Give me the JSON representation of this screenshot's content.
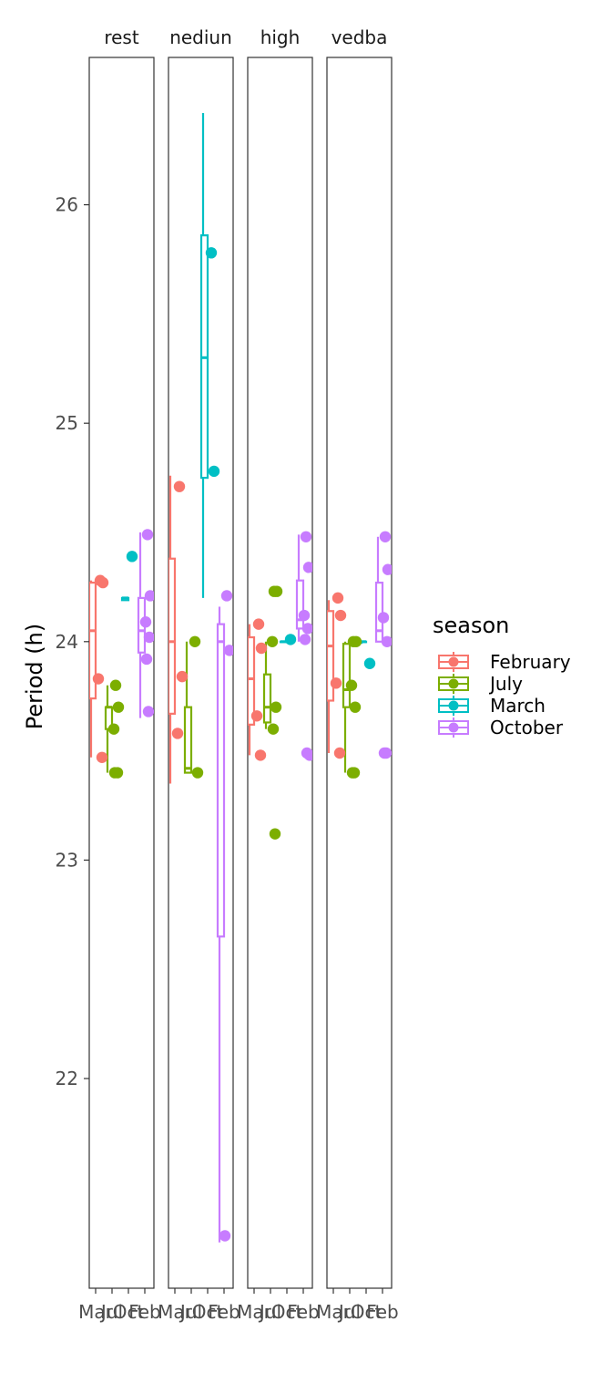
{
  "chart_data": {
    "type": "boxplot",
    "ylabel": "Period (h)",
    "ylim": [
      21.05,
      26.7
    ],
    "y_ticks": [
      22,
      23,
      24,
      25,
      26
    ],
    "x_categories": [
      "March",
      "July",
      "October",
      "February"
    ],
    "x_tick_labels": [
      "Mar",
      "Jul",
      "Oct",
      "Feb"
    ],
    "facets": [
      {
        "label": "rest",
        "boxes": [
          {
            "season": "February",
            "whisker_low": 23.47,
            "q1": 23.74,
            "median": 24.05,
            "q3": 24.27,
            "whisker_high": 24.28
          },
          {
            "season": "July",
            "whisker_low": 23.4,
            "q1": 23.6,
            "median": 23.7,
            "q3": 23.7,
            "whisker_high": 23.8
          },
          {
            "season": "March",
            "whisker_low": 24.19,
            "q1": 24.19,
            "median": 24.2,
            "q3": 24.2,
            "whisker_high": 24.2
          },
          {
            "season": "October",
            "whisker_low": 23.65,
            "q1": 23.95,
            "median": 24.05,
            "q3": 24.2,
            "whisker_high": 24.5
          }
        ],
        "points": [
          {
            "season": "February",
            "y": 24.28
          },
          {
            "season": "February",
            "y": 24.27
          },
          {
            "season": "February",
            "y": 23.83
          },
          {
            "season": "February",
            "y": 23.47
          },
          {
            "season": "July",
            "y": 23.8
          },
          {
            "season": "July",
            "y": 23.7
          },
          {
            "season": "July",
            "y": 23.6
          },
          {
            "season": "July",
            "y": 23.4
          },
          {
            "season": "July",
            "y": 23.4
          },
          {
            "season": "March",
            "y": 24.39
          },
          {
            "season": "October",
            "y": 24.49
          },
          {
            "season": "October",
            "y": 24.21
          },
          {
            "season": "October",
            "y": 24.09
          },
          {
            "season": "October",
            "y": 24.02
          },
          {
            "season": "October",
            "y": 23.92
          },
          {
            "season": "October",
            "y": 23.68
          }
        ]
      },
      {
        "label": "nediun",
        "boxes": [
          {
            "season": "February",
            "whisker_low": 23.35,
            "q1": 23.67,
            "median": 24.0,
            "q3": 24.38,
            "whisker_high": 24.76
          },
          {
            "season": "July",
            "whisker_low": 23.4,
            "q1": 23.4,
            "median": 23.42,
            "q3": 23.7,
            "whisker_high": 24.0
          },
          {
            "season": "March",
            "whisker_low": 24.2,
            "q1": 24.75,
            "median": 25.3,
            "q3": 25.86,
            "whisker_high": 26.42
          },
          {
            "season": "October",
            "whisker_low": 21.25,
            "q1": 22.65,
            "median": 24.0,
            "q3": 24.08,
            "whisker_high": 24.16
          }
        ],
        "points": [
          {
            "season": "February",
            "y": 24.71
          },
          {
            "season": "February",
            "y": 23.84
          },
          {
            "season": "February",
            "y": 23.58
          },
          {
            "season": "July",
            "y": 24.0
          },
          {
            "season": "July",
            "y": 23.4
          },
          {
            "season": "March",
            "y": 25.78
          },
          {
            "season": "March",
            "y": 24.78
          },
          {
            "season": "October",
            "y": 24.21
          },
          {
            "season": "October",
            "y": 23.96
          },
          {
            "season": "October",
            "y": 21.28
          }
        ]
      },
      {
        "label": "high",
        "boxes": [
          {
            "season": "February",
            "whisker_low": 23.48,
            "q1": 23.62,
            "median": 23.83,
            "q3": 24.02,
            "whisker_high": 24.08
          },
          {
            "season": "July",
            "whisker_low": 23.6,
            "q1": 23.63,
            "median": 23.7,
            "q3": 23.85,
            "whisker_high": 24.0
          },
          {
            "season": "March",
            "whisker_low": 24.0,
            "q1": 24.0,
            "median": 24.0,
            "q3": 24.0,
            "whisker_high": 24.0
          },
          {
            "season": "October",
            "whisker_low": 24.0,
            "q1": 24.06,
            "median": 24.1,
            "q3": 24.28,
            "whisker_high": 24.49
          }
        ],
        "points": [
          {
            "season": "February",
            "y": 24.08
          },
          {
            "season": "February",
            "y": 23.97
          },
          {
            "season": "February",
            "y": 23.66
          },
          {
            "season": "February",
            "y": 23.48
          },
          {
            "season": "July",
            "y": 24.23
          },
          {
            "season": "July",
            "y": 24.23
          },
          {
            "season": "July",
            "y": 24.0
          },
          {
            "season": "July",
            "y": 23.7
          },
          {
            "season": "July",
            "y": 23.6
          },
          {
            "season": "July",
            "y": 23.12
          },
          {
            "season": "March",
            "y": 24.01
          },
          {
            "season": "October",
            "y": 24.48
          },
          {
            "season": "October",
            "y": 24.34
          },
          {
            "season": "October",
            "y": 24.12
          },
          {
            "season": "October",
            "y": 24.06
          },
          {
            "season": "October",
            "y": 24.01
          },
          {
            "season": "October",
            "y": 23.49
          },
          {
            "season": "October",
            "y": 23.48
          }
        ]
      },
      {
        "label": "vedba",
        "boxes": [
          {
            "season": "February",
            "whisker_low": 23.49,
            "q1": 23.73,
            "median": 23.98,
            "q3": 24.14,
            "whisker_high": 24.19
          },
          {
            "season": "July",
            "whisker_low": 23.4,
            "q1": 23.7,
            "median": 23.78,
            "q3": 23.99,
            "whisker_high": 24.0
          },
          {
            "season": "March",
            "whisker_low": 23.99,
            "q1": 24.0,
            "median": 24.0,
            "q3": 24.0,
            "whisker_high": 24.0
          },
          {
            "season": "October",
            "whisker_low": 24.0,
            "q1": 24.0,
            "median": 24.05,
            "q3": 24.27,
            "whisker_high": 24.48
          }
        ],
        "points": [
          {
            "season": "February",
            "y": 24.2
          },
          {
            "season": "February",
            "y": 24.12
          },
          {
            "season": "February",
            "y": 23.81
          },
          {
            "season": "February",
            "y": 23.49
          },
          {
            "season": "July",
            "y": 24.0
          },
          {
            "season": "July",
            "y": 24.0
          },
          {
            "season": "July",
            "y": 23.8
          },
          {
            "season": "July",
            "y": 23.7
          },
          {
            "season": "July",
            "y": 23.4
          },
          {
            "season": "July",
            "y": 23.4
          },
          {
            "season": "March",
            "y": 23.9
          },
          {
            "season": "October",
            "y": 24.48
          },
          {
            "season": "October",
            "y": 24.33
          },
          {
            "season": "October",
            "y": 24.11
          },
          {
            "season": "October",
            "y": 24.0
          },
          {
            "season": "October",
            "y": 23.49
          },
          {
            "season": "October",
            "y": 23.49
          }
        ]
      }
    ],
    "legend": {
      "title": "season",
      "placement": "right",
      "entries": [
        {
          "label": "February",
          "color": "#F8766D"
        },
        {
          "label": "July",
          "color": "#7CAE00"
        },
        {
          "label": "March",
          "color": "#00BFC4"
        },
        {
          "label": "October",
          "color": "#C77CFF"
        }
      ]
    },
    "grid": false
  }
}
